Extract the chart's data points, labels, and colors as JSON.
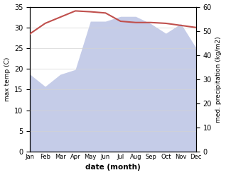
{
  "months": [
    "Jan",
    "Feb",
    "Mar",
    "Apr",
    "May",
    "Jun",
    "Jul",
    "Aug",
    "Sep",
    "Oct",
    "Nov",
    "Dec"
  ],
  "temp": [
    28.5,
    31.0,
    32.5,
    34.0,
    33.8,
    33.5,
    31.5,
    31.2,
    31.2,
    31.0,
    30.5,
    30.0
  ],
  "precip": [
    32,
    27,
    32,
    34,
    54,
    54,
    56,
    56,
    53,
    49,
    53,
    43
  ],
  "temp_color": "#c0504d",
  "precip_fill_color": "#c5cce8",
  "background_color": "#ffffff",
  "xlabel": "date (month)",
  "ylabel_left": "max temp (C)",
  "ylabel_right": "med. precipitation (kg/m2)",
  "ylim_left": [
    0,
    35
  ],
  "ylim_right": [
    0,
    60
  ],
  "yticks_left": [
    0,
    5,
    10,
    15,
    20,
    25,
    30,
    35
  ],
  "yticks_right": [
    0,
    10,
    20,
    30,
    40,
    50,
    60
  ]
}
